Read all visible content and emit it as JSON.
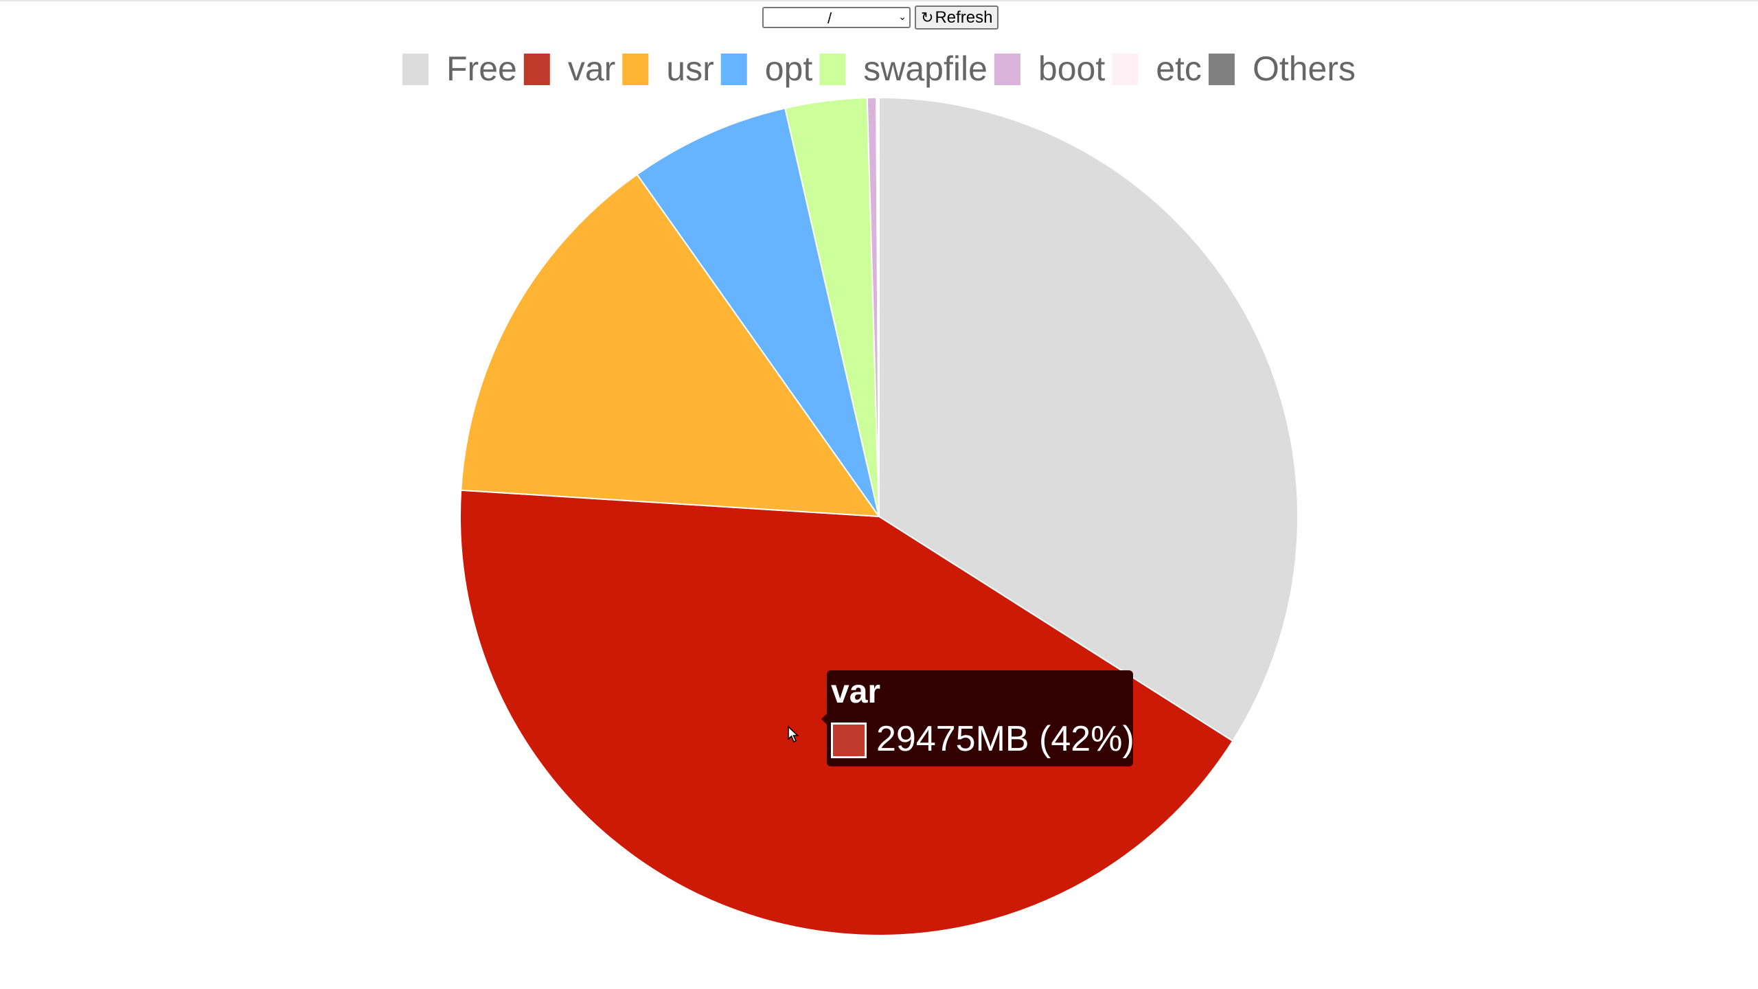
{
  "toolbar": {
    "mount_select_value": "/",
    "refresh_icon": "↻",
    "refresh_label": "Refresh"
  },
  "tooltip": {
    "title": "var",
    "value_text": "29475MB (42%)",
    "swatch_color": "#c0392b"
  },
  "chart_data": {
    "type": "pie",
    "title": "",
    "start_angle_deg": 0,
    "direction": "clockwise",
    "legend_position": "top",
    "slices": [
      {
        "label": "Free",
        "percent": 34.0,
        "color": "#dcdcdc",
        "legend_color": "#dcdcdc"
      },
      {
        "label": "var",
        "percent": 42.0,
        "color": "#cc1a06",
        "legend_color": "#c0392b"
      },
      {
        "label": "usr",
        "percent": 14.2,
        "color": "#ffb533",
        "legend_color": "#ffb533"
      },
      {
        "label": "opt",
        "percent": 6.2,
        "color": "#66b3ff",
        "legend_color": "#66b3ff"
      },
      {
        "label": "swapfile",
        "percent": 3.15,
        "color": "#ccff99",
        "legend_color": "#ccff99"
      },
      {
        "label": "boot",
        "percent": 0.35,
        "color": "#d9b3d9",
        "legend_color": "#d9b3d9"
      },
      {
        "label": "etc",
        "percent": 0.05,
        "color": "#fff0f5",
        "legend_color": "#fff0f5"
      },
      {
        "label": "Others",
        "percent": 0.05,
        "color": "#808080",
        "legend_color": "#808080"
      }
    ]
  }
}
